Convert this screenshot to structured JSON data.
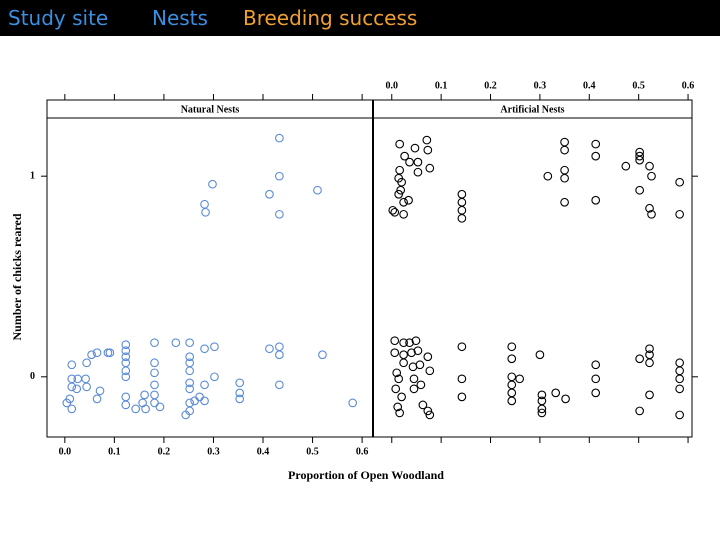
{
  "header": {
    "tabs": [
      {
        "text": "Study site",
        "color": "#3a8fe0"
      },
      {
        "text": "Nests",
        "color": "#3a8fe0"
      },
      {
        "text": "Breeding success",
        "color": "#f0a030"
      }
    ]
  },
  "shared_axes": {
    "xlabel": "Proportion of Open Woodland",
    "ylabel": "Number of chicks reared"
  },
  "chart_data": [
    {
      "type": "scatter",
      "title": "Natural Nests",
      "color": "#5b8bd6",
      "xlim": [
        -0.036,
        0.622
      ],
      "xticks": [
        {
          "value": 0,
          "label": "0.0"
        },
        0.1,
        0.2,
        0.3,
        0.4,
        0.5,
        0.6
      ],
      "xtick_side": "bottom",
      "ylim": [
        -0.3,
        1.29
      ],
      "yticks": [
        0,
        1
      ],
      "x": [
        0.433,
        0.298,
        0.282,
        0.284,
        0.413,
        0.433,
        0.433,
        0.51,
        0.014,
        0.014,
        0.014,
        0.01,
        0.004,
        0.014,
        0.024,
        0.026,
        0.042,
        0.044,
        0.044,
        0.054,
        0.065,
        0.071,
        0.065,
        0.087,
        0.123,
        0.123,
        0.123,
        0.123,
        0.123,
        0.123,
        0.123,
        0.123,
        0.143,
        0.157,
        0.161,
        0.181,
        0.181,
        0.181,
        0.181,
        0.181,
        0.181,
        0.224,
        0.252,
        0.252,
        0.252,
        0.252,
        0.252,
        0.252,
        0.252,
        0.252,
        0.244,
        0.262,
        0.282,
        0.282,
        0.302,
        0.302,
        0.272,
        0.282,
        0.353,
        0.353,
        0.353,
        0.413,
        0.433,
        0.433,
        0.433,
        0.52,
        0.581,
        0.091,
        0.192,
        0.163
      ],
      "y": [
        1.19,
        0.96,
        0.86,
        0.82,
        0.91,
        1.0,
        0.81,
        0.93,
        0.06,
        -0.01,
        -0.05,
        -0.11,
        -0.13,
        -0.16,
        -0.06,
        -0.01,
        -0.01,
        -0.05,
        0.07,
        0.11,
        0.12,
        -0.07,
        -0.11,
        0.12,
        0.16,
        0.13,
        0.1,
        0.07,
        0.03,
        0,
        -0.1,
        -0.14,
        -0.16,
        -0.13,
        -0.09,
        0.17,
        0.07,
        0.02,
        -0.04,
        -0.09,
        -0.13,
        0.17,
        0.17,
        0.1,
        0.07,
        0.03,
        -0.03,
        -0.06,
        -0.13,
        -0.17,
        -0.19,
        -0.12,
        -0.04,
        0.14,
        0.15,
        0,
        -0.1,
        -0.12,
        -0.03,
        -0.08,
        -0.11,
        0.14,
        0.15,
        0.11,
        -0.04,
        0.11,
        -0.13,
        0.12,
        -0.15,
        -0.16
      ]
    },
    {
      "type": "scatter",
      "title": "Artificial Nests",
      "color": "#000000",
      "xlim": [
        -0.038,
        0.608
      ],
      "xticks": [
        {
          "value": 0,
          "label": "0.0"
        },
        0.1,
        0.2,
        0.3,
        0.4,
        0.5,
        0.6
      ],
      "xtick_side": "top",
      "ylim": [
        -0.3,
        1.29
      ],
      "yticks": [
        0,
        1
      ],
      "x": [
        0.016,
        0.026,
        0.047,
        0.071,
        0.073,
        0.053,
        0.036,
        0.016,
        0.014,
        0.018,
        0.02,
        0.014,
        0.024,
        0.006,
        0.002,
        0.024,
        0.034,
        0.053,
        0.077,
        0.142,
        0.142,
        0.142,
        0.142,
        0.316,
        0.35,
        0.35,
        0.35,
        0.35,
        0.35,
        0.413,
        0.413,
        0.413,
        0.474,
        0.502,
        0.502,
        0.502,
        0.502,
        0.522,
        0.526,
        0.522,
        0.526,
        0.583,
        0.583,
        0.006,
        0.006,
        0.01,
        0.014,
        0.008,
        0.012,
        0.016,
        0.024,
        0.024,
        0.024,
        0.02,
        0.036,
        0.04,
        0.043,
        0.045,
        0.045,
        0.049,
        0.053,
        0.057,
        0.059,
        0.063,
        0.073,
        0.073,
        0.077,
        0.077,
        0.142,
        0.142,
        0.142,
        0.243,
        0.243,
        0.243,
        0.243,
        0.243,
        0.243,
        0.259,
        0.3,
        0.304,
        0.304,
        0.304,
        0.304,
        0.332,
        0.352,
        0.413,
        0.413,
        0.413,
        0.502,
        0.522,
        0.522,
        0.522,
        0.502,
        0.522,
        0.583,
        0.583,
        0.583,
        0.583,
        0.583
      ],
      "y": [
        1.16,
        1.1,
        1.14,
        1.18,
        1.13,
        1.07,
        1.07,
        1.03,
        0.99,
        0.93,
        0.97,
        0.91,
        0.87,
        0.82,
        0.83,
        0.81,
        0.88,
        1.02,
        1.04,
        0.91,
        0.87,
        0.83,
        0.79,
        1.0,
        1.17,
        1.13,
        1.03,
        0.99,
        0.87,
        1.16,
        1.1,
        0.88,
        1.05,
        1.12,
        1.1,
        1.08,
        0.93,
        1.05,
        1.0,
        0.84,
        0.81,
        0.97,
        0.81,
        0.18,
        0.12,
        0.02,
        -0.01,
        -0.06,
        -0.15,
        -0.18,
        0.17,
        0.11,
        0.07,
        -0.1,
        0.17,
        0.12,
        0.05,
        -0.01,
        -0.06,
        0.18,
        0.13,
        0.06,
        -0.04,
        -0.14,
        0.1,
        -0.17,
        -0.19,
        0.03,
        0.15,
        -0.01,
        -0.1,
        0.15,
        0.09,
        0,
        -0.04,
        -0.08,
        -0.12,
        -0.01,
        0.11,
        -0.09,
        -0.12,
        -0.16,
        -0.18,
        -0.08,
        -0.11,
        0.06,
        -0.01,
        -0.08,
        0.09,
        0.14,
        0.11,
        0.07,
        -0.17,
        -0.09,
        0.07,
        0.03,
        -0.01,
        -0.06,
        -0.19
      ]
    }
  ]
}
